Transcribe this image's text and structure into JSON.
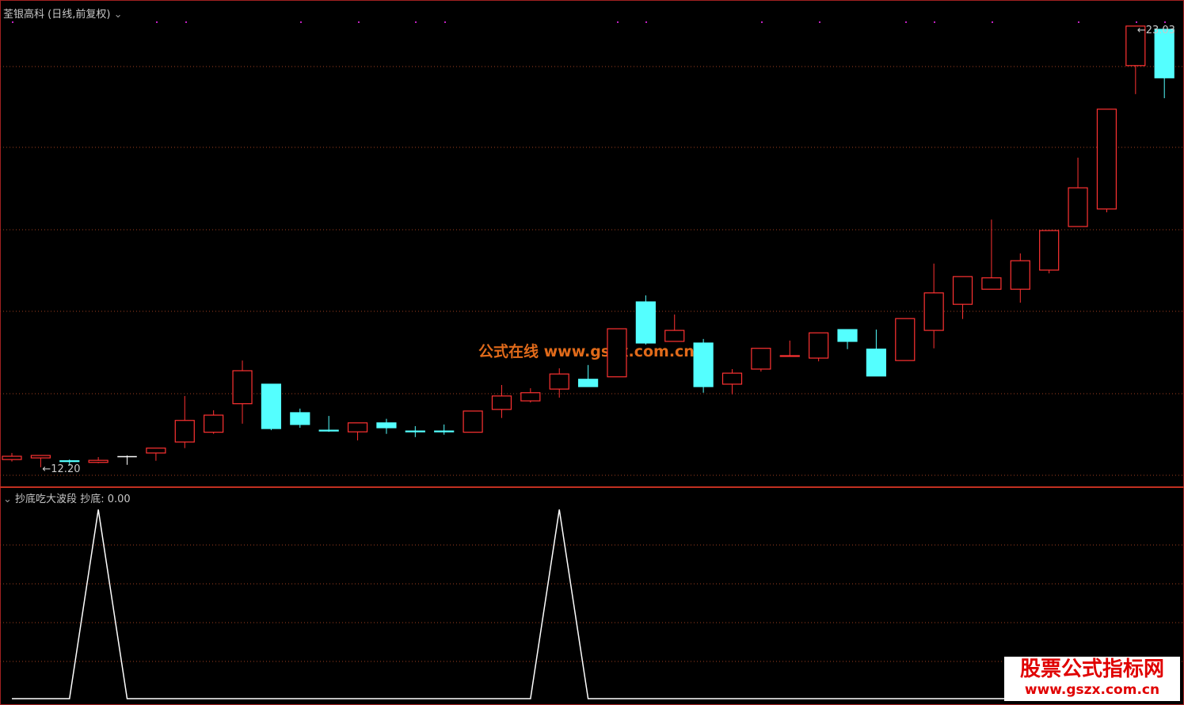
{
  "header": {
    "title": "荃银高科 (日线,前复权)",
    "indicator": "抄底吃大波段",
    "readout_name": "抄底:",
    "readout_value": "0.00"
  },
  "watermark": "公式在线  www.gszx.com.cn",
  "badge": {
    "title": "股票公式指标网",
    "url": "www.gszx.com.cn"
  },
  "chart_data": [
    {
      "type": "candlestick",
      "low_label": "12.20",
      "high_label": "23.03",
      "up_color": "#ff3232",
      "down_color": "#54ffff",
      "flat_color": "#ffffff",
      "ylim": [
        11.77,
        23.67
      ],
      "open": [
        12.39,
        12.43,
        12.36,
        12.32,
        12.47,
        12.55,
        12.82,
        13.06,
        13.76,
        14.24,
        13.54,
        13.11,
        13.07,
        13.29,
        13.09,
        13.09,
        13.06,
        13.62,
        13.83,
        14.12,
        14.36,
        14.42,
        16.26,
        15.29,
        15.25,
        14.24,
        14.61,
        14.93,
        14.88,
        15.58,
        15.1,
        14.82,
        15.56,
        16.2,
        16.57,
        16.57,
        17.04,
        18.11,
        18.54,
        22.06,
        22.95
      ],
      "close": [
        12.47,
        12.49,
        12.34,
        12.37,
        12.47,
        12.67,
        13.35,
        13.48,
        14.57,
        13.15,
        13.25,
        13.09,
        13.29,
        13.17,
        13.07,
        13.07,
        13.58,
        13.95,
        14.03,
        14.49,
        14.18,
        15.6,
        15.25,
        15.56,
        14.18,
        14.51,
        15.12,
        14.94,
        15.5,
        15.29,
        14.44,
        15.85,
        16.48,
        16.88,
        16.85,
        17.27,
        18.01,
        19.06,
        20.99,
        23.03,
        21.76
      ],
      "high": [
        12.55,
        12.49,
        12.39,
        12.45,
        12.49,
        12.67,
        13.95,
        13.6,
        14.82,
        14.24,
        13.64,
        13.46,
        13.29,
        13.39,
        13.21,
        13.25,
        13.58,
        14.22,
        14.14,
        14.63,
        14.71,
        15.6,
        16.42,
        15.95,
        15.35,
        14.61,
        15.12,
        15.31,
        15.5,
        15.58,
        15.58,
        15.85,
        17.2,
        16.88,
        18.28,
        17.45,
        18.01,
        19.8,
        20.99,
        23.03,
        22.95
      ],
      "low": [
        12.34,
        12.2,
        12.24,
        12.3,
        12.26,
        12.36,
        12.67,
        13.02,
        13.27,
        13.11,
        13.17,
        13.07,
        12.86,
        13.02,
        12.94,
        13.0,
        13.06,
        13.41,
        13.79,
        13.91,
        14.18,
        14.42,
        15.21,
        15.29,
        14.03,
        13.99,
        14.55,
        14.94,
        14.8,
        15.1,
        14.44,
        14.82,
        15.12,
        15.84,
        16.57,
        16.24,
        16.96,
        18.11,
        18.46,
        21.36,
        21.26
      ]
    },
    {
      "type": "line",
      "color": "#ffffff",
      "ylim": [
        0,
        1.11
      ],
      "values": [
        0,
        0,
        0,
        1,
        0,
        0,
        0,
        0,
        0,
        0,
        0,
        0,
        0,
        0,
        0,
        0,
        0,
        0,
        0,
        1,
        0,
        0,
        0,
        0,
        0,
        0,
        0,
        0,
        0,
        0,
        0,
        0,
        0,
        0,
        0,
        0,
        0,
        0,
        0,
        0,
        0
      ]
    }
  ]
}
